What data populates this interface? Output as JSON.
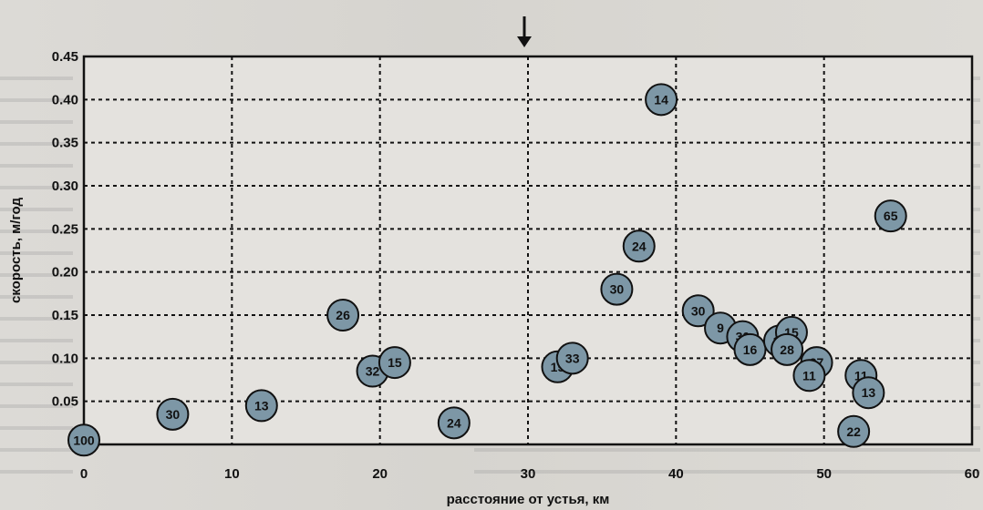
{
  "chart_data": {
    "type": "scatter",
    "xlabel": "расстояние от устья, км",
    "ylabel": "скорость, м/год",
    "xlim": [
      0,
      60
    ],
    "ylim": [
      0,
      0.45
    ],
    "x_ticks": [
      "0",
      "10",
      "20",
      "30",
      "40",
      "50",
      "60"
    ],
    "y_ticks": [
      "0.05",
      "0.10",
      "0.15",
      "0.20",
      "0.25",
      "0.30",
      "0.35",
      "0.40",
      "0.45"
    ],
    "grid": true,
    "arrow_marker_x": 30,
    "points": [
      {
        "x": 0,
        "y": 0.005,
        "label": "100"
      },
      {
        "x": 6,
        "y": 0.035,
        "label": "30"
      },
      {
        "x": 12,
        "y": 0.045,
        "label": "13"
      },
      {
        "x": 17.5,
        "y": 0.15,
        "label": "26"
      },
      {
        "x": 19.5,
        "y": 0.085,
        "label": "32"
      },
      {
        "x": 21,
        "y": 0.095,
        "label": "15"
      },
      {
        "x": 25,
        "y": 0.025,
        "label": "24"
      },
      {
        "x": 32,
        "y": 0.09,
        "label": "15"
      },
      {
        "x": 33,
        "y": 0.1,
        "label": "33"
      },
      {
        "x": 36,
        "y": 0.18,
        "label": "30"
      },
      {
        "x": 37.5,
        "y": 0.23,
        "label": "24"
      },
      {
        "x": 39,
        "y": 0.4,
        "label": "14"
      },
      {
        "x": 41.5,
        "y": 0.155,
        "label": "30"
      },
      {
        "x": 43,
        "y": 0.135,
        "label": "9"
      },
      {
        "x": 44.5,
        "y": 0.125,
        "label": "30"
      },
      {
        "x": 45,
        "y": 0.11,
        "label": "16"
      },
      {
        "x": 47,
        "y": 0.12,
        "label": "11"
      },
      {
        "x": 47.8,
        "y": 0.13,
        "label": "15"
      },
      {
        "x": 47.5,
        "y": 0.11,
        "label": "28"
      },
      {
        "x": 49.5,
        "y": 0.095,
        "label": "27"
      },
      {
        "x": 49,
        "y": 0.08,
        "label": "11"
      },
      {
        "x": 52,
        "y": 0.015,
        "label": "22"
      },
      {
        "x": 52.5,
        "y": 0.08,
        "label": "11"
      },
      {
        "x": 53,
        "y": 0.06,
        "label": "13"
      },
      {
        "x": 54.5,
        "y": 0.265,
        "label": "65"
      }
    ]
  }
}
